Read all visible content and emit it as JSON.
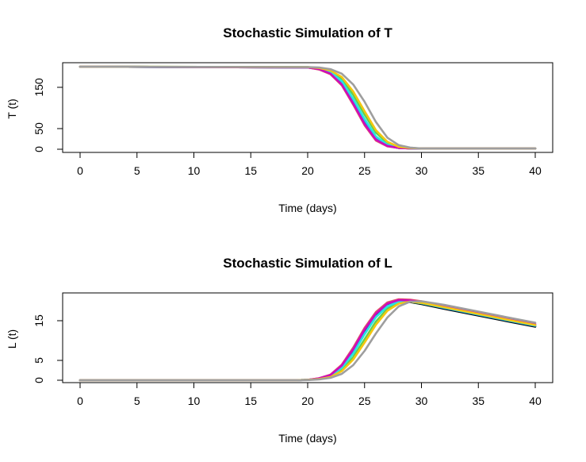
{
  "chart_data": [
    {
      "type": "line",
      "title": "Stochastic Simulation of T",
      "xlabel": "Time (days)",
      "ylabel": "T (t)",
      "xlim": [
        0,
        40
      ],
      "ylim": [
        0,
        200
      ],
      "xticks": [
        "0",
        "5",
        "10",
        "15",
        "20",
        "25",
        "30",
        "35",
        "40"
      ],
      "yticks": [
        "0",
        "50",
        "150"
      ],
      "grid": false,
      "legend": "none",
      "curve_shape": "decreasing sigmoid",
      "series": [
        {
          "color": "#000000",
          "x": [
            0,
            20,
            21,
            22,
            23,
            24,
            25,
            26,
            27,
            28,
            29,
            30,
            31,
            32,
            40
          ],
          "y": [
            200,
            198,
            194,
            184,
            160,
            115,
            65,
            25,
            8,
            3,
            2,
            2,
            2,
            2,
            2
          ]
        },
        {
          "color": "#DF536B",
          "x": [
            0,
            20,
            21,
            22,
            23,
            24,
            25,
            26,
            27,
            28,
            29,
            30,
            31,
            32,
            40
          ],
          "y": [
            200,
            198,
            193,
            182,
            155,
            108,
            58,
            21,
            7,
            3,
            2,
            2,
            2,
            2,
            2
          ]
        },
        {
          "color": "#61D04F",
          "x": [
            0,
            20,
            21,
            22,
            23,
            24,
            25,
            26,
            27,
            28,
            29,
            30,
            31,
            32,
            40
          ],
          "y": [
            200,
            199,
            196,
            189,
            170,
            132,
            84,
            40,
            15,
            5,
            3,
            2,
            2,
            2,
            2
          ]
        },
        {
          "color": "#2297E6",
          "x": [
            0,
            20,
            21,
            22,
            23,
            24,
            25,
            26,
            27,
            28,
            29,
            30,
            31,
            32,
            40
          ],
          "y": [
            200,
            198,
            195,
            186,
            163,
            120,
            70,
            29,
            10,
            4,
            2,
            2,
            2,
            2,
            2
          ]
        },
        {
          "color": "#28E2E5",
          "x": [
            0,
            20,
            21,
            22,
            23,
            24,
            25,
            26,
            27,
            28,
            29,
            30,
            31,
            32,
            40
          ],
          "y": [
            200,
            198,
            195,
            187,
            165,
            122,
            73,
            31,
            11,
            4,
            2,
            2,
            2,
            2,
            2
          ]
        },
        {
          "color": "#CD0BBC",
          "x": [
            0,
            20,
            21,
            22,
            23,
            24,
            25,
            26,
            27,
            28,
            29,
            30,
            31,
            32,
            40
          ],
          "y": [
            200,
            198,
            194,
            183,
            157,
            111,
            61,
            23,
            8,
            3,
            2,
            2,
            2,
            2,
            2
          ]
        },
        {
          "color": "#F5C710",
          "x": [
            0,
            20,
            21,
            22,
            23,
            24,
            25,
            26,
            27,
            28,
            29,
            30,
            31,
            32,
            40
          ],
          "y": [
            200,
            199,
            197,
            191,
            175,
            140,
            92,
            46,
            18,
            6,
            3,
            2,
            2,
            2,
            2
          ]
        },
        {
          "color": "#9E9E9E",
          "x": [
            0,
            20,
            21,
            22,
            23,
            24,
            25,
            26,
            27,
            28,
            29,
            30,
            31,
            32,
            40
          ],
          "y": [
            200,
            199,
            198,
            194,
            183,
            157,
            115,
            66,
            28,
            10,
            4,
            2,
            2,
            2,
            2
          ]
        }
      ]
    },
    {
      "type": "line",
      "title": "Stochastic Simulation of L",
      "xlabel": "Time (days)",
      "ylabel": "L (t)",
      "xlim": [
        0,
        40
      ],
      "ylim": [
        0,
        20
      ],
      "xticks": [
        "0",
        "5",
        "10",
        "15",
        "20",
        "25",
        "30",
        "35",
        "40"
      ],
      "yticks": [
        "0",
        "5",
        "15"
      ],
      "grid": false,
      "legend": "none",
      "curve_shape": "rise then slow decay",
      "series": [
        {
          "color": "#000000",
          "x": [
            0,
            19,
            20,
            21,
            22,
            23,
            24,
            25,
            26,
            27,
            28,
            29,
            30,
            32,
            35,
            38,
            40
          ],
          "y": [
            0,
            0,
            0.1,
            0.4,
            1.2,
            3.4,
            7.3,
            12.3,
            16.4,
            18.9,
            19.8,
            19.7,
            19.2,
            18.0,
            16.3,
            14.6,
            13.5
          ]
        },
        {
          "color": "#DF536B",
          "x": [
            0,
            19,
            20,
            21,
            22,
            23,
            24,
            25,
            26,
            27,
            28,
            29,
            30,
            32,
            35,
            38,
            40
          ],
          "y": [
            0,
            0,
            0.1,
            0.5,
            1.4,
            3.9,
            8.2,
            13.2,
            17.2,
            19.6,
            20.4,
            20.3,
            19.9,
            18.8,
            17.0,
            15.3,
            14.2
          ]
        },
        {
          "color": "#61D04F",
          "x": [
            0,
            19,
            20,
            21,
            22,
            23,
            24,
            25,
            26,
            27,
            28,
            29,
            30,
            32,
            35,
            38,
            40
          ],
          "y": [
            0,
            0,
            0.1,
            0.3,
            0.9,
            2.6,
            5.8,
            10.3,
            14.8,
            18.0,
            19.5,
            19.8,
            19.5,
            18.4,
            16.7,
            15.0,
            13.9
          ]
        },
        {
          "color": "#2297E6",
          "x": [
            0,
            19,
            20,
            21,
            22,
            23,
            24,
            25,
            26,
            27,
            28,
            29,
            30,
            32,
            35,
            38,
            40
          ],
          "y": [
            0,
            0,
            0.1,
            0.4,
            1.1,
            3.2,
            6.9,
            11.8,
            16.0,
            18.7,
            19.8,
            19.8,
            19.4,
            18.2,
            16.5,
            14.8,
            13.7
          ]
        },
        {
          "color": "#28E2E5",
          "x": [
            0,
            19,
            20,
            21,
            22,
            23,
            24,
            25,
            26,
            27,
            28,
            29,
            30,
            32,
            35,
            38,
            40
          ],
          "y": [
            0,
            0,
            0.1,
            0.4,
            1.1,
            3.1,
            6.7,
            11.6,
            15.9,
            18.6,
            19.8,
            19.8,
            19.4,
            18.3,
            16.6,
            14.9,
            13.8
          ]
        },
        {
          "color": "#CD0BBC",
          "x": [
            0,
            19,
            20,
            21,
            22,
            23,
            24,
            25,
            26,
            27,
            28,
            29,
            30,
            32,
            35,
            38,
            40
          ],
          "y": [
            0,
            0,
            0.1,
            0.5,
            1.3,
            3.7,
            7.8,
            12.8,
            16.8,
            19.3,
            20.2,
            20.1,
            19.7,
            18.5,
            16.8,
            15.1,
            14.0
          ]
        },
        {
          "color": "#F5C710",
          "x": [
            0,
            19,
            20,
            21,
            22,
            23,
            24,
            25,
            26,
            27,
            28,
            29,
            30,
            32,
            35,
            38,
            40
          ],
          "y": [
            0,
            0,
            0.1,
            0.3,
            0.8,
            2.3,
            5.2,
            9.5,
            14.0,
            17.5,
            19.3,
            19.8,
            19.5,
            18.4,
            16.7,
            15.0,
            13.9
          ]
        },
        {
          "color": "#9E9E9E",
          "x": [
            0,
            19,
            20,
            21,
            22,
            23,
            24,
            25,
            26,
            27,
            28,
            29,
            30,
            32,
            35,
            38,
            40
          ],
          "y": [
            0,
            0,
            0.05,
            0.2,
            0.6,
            1.6,
            3.8,
            7.4,
            11.8,
            15.8,
            18.6,
            19.8,
            19.9,
            19.0,
            17.3,
            15.6,
            14.5
          ]
        }
      ]
    }
  ]
}
